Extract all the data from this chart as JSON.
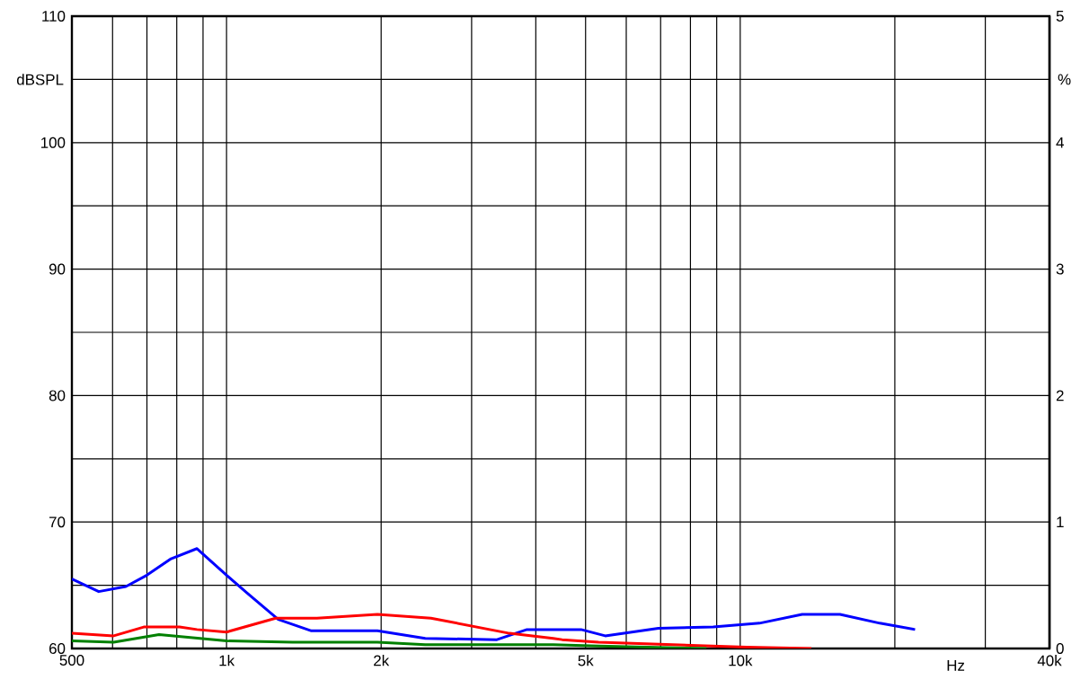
{
  "chart_data": {
    "type": "line",
    "xlabel": "Hz",
    "ylabel": "dBSPL",
    "y2label": "%",
    "log": "x",
    "grid": true,
    "xlim": [
      500,
      40000
    ],
    "xticks": [
      {
        "value": 500,
        "label": "500"
      },
      {
        "value": 600,
        "label": null
      },
      {
        "value": 700,
        "label": null
      },
      {
        "value": 800,
        "label": null
      },
      {
        "value": 900,
        "label": null
      },
      {
        "value": 1000,
        "label": "1k"
      },
      {
        "value": 2000,
        "label": "2k"
      },
      {
        "value": 3000,
        "label": null
      },
      {
        "value": 4000,
        "label": null
      },
      {
        "value": 5000,
        "label": "5k"
      },
      {
        "value": 6000,
        "label": null
      },
      {
        "value": 7000,
        "label": null
      },
      {
        "value": 8000,
        "label": null
      },
      {
        "value": 9000,
        "label": null
      },
      {
        "value": 10000,
        "label": "10k"
      },
      {
        "value": 20000,
        "label": null
      },
      {
        "value": 30000,
        "label": null
      },
      {
        "value": 40000,
        "label": "40k"
      }
    ],
    "ylim": [
      60,
      110
    ],
    "yticks": [
      60,
      {
        "value": 65,
        "label": null
      },
      70,
      {
        "value": 75,
        "label": null
      },
      80,
      {
        "value": 85,
        "label": null
      },
      90,
      {
        "value": 95,
        "label": null
      },
      100,
      {
        "value": 105,
        "label": null
      },
      110
    ],
    "y2lim": [
      0,
      5
    ],
    "y2ticks": [
      0,
      1,
      2,
      3,
      4,
      5
    ],
    "series": [
      {
        "color": "#0000ff",
        "axis": "y2",
        "x": [
          500,
          564,
          637,
          700,
          780,
          876,
          1000,
          1096,
          1261,
          1463,
          1967,
          2437,
          3360,
          3845,
          4900,
          5460,
          6930,
          8860,
          10900,
          13200,
          15640,
          18700,
          21900
        ],
        "values": [
          0.55,
          0.45,
          0.49,
          0.58,
          0.71,
          0.79,
          0.58,
          0.44,
          0.23,
          0.14,
          0.14,
          0.08,
          0.07,
          0.15,
          0.15,
          0.1,
          0.16,
          0.17,
          0.2,
          0.27,
          0.27,
          0.2,
          0.15
        ]
      },
      {
        "color": "#ff0000",
        "axis": "y2",
        "x": [
          500,
          603,
          690,
          810,
          876,
          1000,
          1247,
          1500,
          1967,
          2500,
          3555,
          4325,
          4500,
          5300,
          10300,
          13760
        ],
        "values": [
          0.12,
          0.1,
          0.17,
          0.17,
          0.15,
          0.13,
          0.24,
          0.24,
          0.27,
          0.24,
          0.12,
          0.08,
          0.07,
          0.05,
          0.01,
          0
        ]
      },
      {
        "color": "#008000",
        "axis": "y2",
        "x": [
          500,
          603,
          739,
          1000,
          1345,
          1967,
          2437,
          4325,
          5300,
          8600
        ],
        "values": [
          0.06,
          0.05,
          0.11,
          0.06,
          0.05,
          0.05,
          0.03,
          0.03,
          0.02,
          0
        ]
      }
    ]
  }
}
